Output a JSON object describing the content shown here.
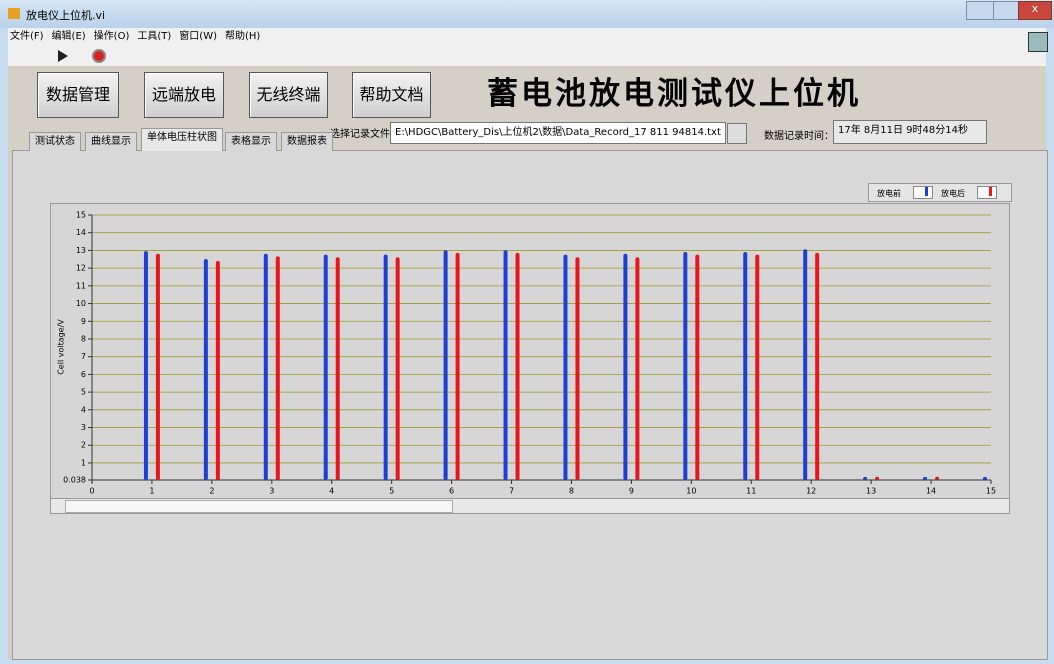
{
  "window": {
    "title": "放电仪上位机.vi",
    "menu": [
      "文件(F)",
      "编辑(E)",
      "操作(O)",
      "工具(T)",
      "窗口(W)",
      "帮助(H)"
    ]
  },
  "buttons": [
    "数据管理",
    "远端放电",
    "无线终端",
    "帮助文档"
  ],
  "app_title": "蓄电池放电测试仪上位机",
  "tabs": [
    "测试状态",
    "曲线显示",
    "单体电压柱状图",
    "表格显示",
    "数据报表"
  ],
  "selected_tab": 2,
  "file_label": "选择记录文件",
  "file_path": "E:\\HDGC\\Battery_Dis\\上位机2\\数据\\Data_Record_17 811 94814.txt",
  "time_label": "数据记录时间：",
  "time_value": "17年 8月11日 9时48分14秒",
  "chart_data": {
    "type": "bar",
    "y_label": "Cell voltage/V",
    "x": [
      1,
      2,
      3,
      4,
      5,
      6,
      7,
      8,
      9,
      10,
      11,
      12,
      13,
      14,
      15
    ],
    "series": [
      {
        "name": "放电前",
        "color": "#1e3fd2",
        "values": [
          12.85,
          12.4,
          12.7,
          12.65,
          12.65,
          12.9,
          12.9,
          12.65,
          12.7,
          12.8,
          12.8,
          12.95,
          0.1,
          0.1,
          0.1
        ]
      },
      {
        "name": "放电后",
        "color": "#e8141e",
        "values": [
          12.7,
          12.3,
          12.55,
          12.5,
          12.5,
          12.75,
          12.75,
          12.5,
          12.5,
          12.65,
          12.65,
          12.75,
          0.1,
          0.1,
          0.1
        ]
      }
    ],
    "xlim": [
      0,
      15
    ],
    "xticks": [
      0,
      1,
      2,
      3,
      4,
      5,
      6,
      7,
      8,
      9,
      10,
      11,
      12,
      13,
      14,
      15
    ],
    "ylim": [
      0.038,
      15
    ],
    "yticks": [
      0.038,
      1,
      2,
      3,
      4,
      5,
      6,
      7,
      8,
      9,
      10,
      11,
      12,
      13,
      14,
      15
    ],
    "grid": true
  }
}
